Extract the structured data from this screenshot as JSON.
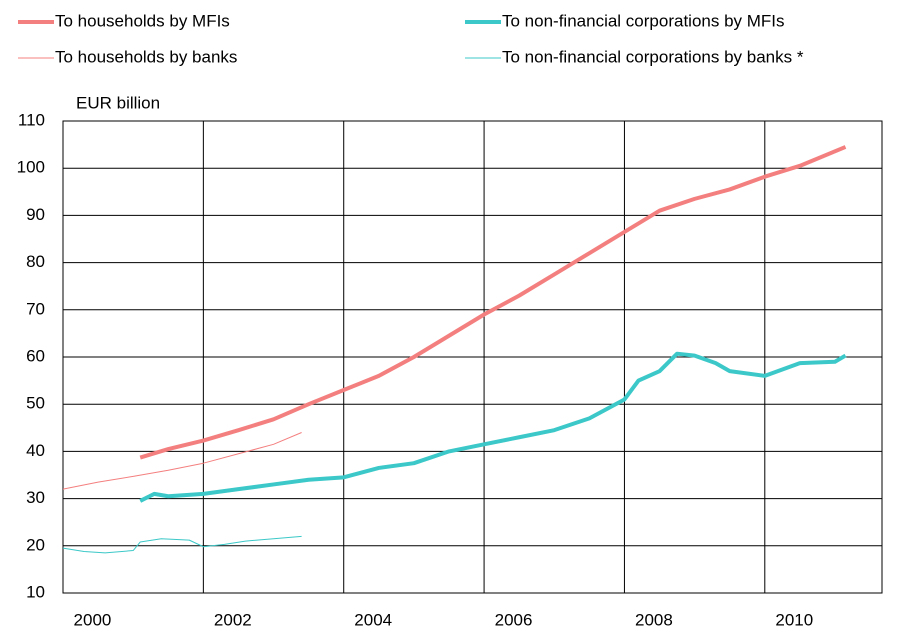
{
  "chart_data": {
    "type": "line",
    "y_label": "EUR billion",
    "xlim": [
      2000,
      2011.67
    ],
    "xticks": [
      2000,
      2002,
      2004,
      2006,
      2008,
      2010
    ],
    "ylim": [
      10,
      110
    ],
    "yticks": [
      10,
      20,
      30,
      40,
      50,
      60,
      70,
      80,
      90,
      100,
      110
    ],
    "grid": true,
    "series": [
      {
        "name": "To households by MFIs",
        "color": "#f47f7f",
        "width": 4,
        "x": [
          2001.1,
          2001.5,
          2002,
          2002.5,
          2003,
          2003.5,
          2004,
          2004.5,
          2005,
          2005.5,
          2006,
          2006.5,
          2007,
          2007.5,
          2008,
          2008.5,
          2009,
          2009.5,
          2010,
          2010.5,
          2011.15
        ],
        "values": [
          38.7,
          40.5,
          42.3,
          44.5,
          46.8,
          50,
          53,
          56,
          60,
          64.5,
          69,
          73,
          77.5,
          82,
          86.5,
          91,
          93.5,
          95.5,
          98.2,
          100.5,
          104.5
        ]
      },
      {
        "name": "To non-financial corporations by MFIs",
        "color": "#3cc8c8",
        "width": 4,
        "x": [
          2001.1,
          2001.3,
          2001.5,
          2002,
          2002.5,
          2003,
          2003.5,
          2004,
          2004.5,
          2005,
          2005.5,
          2006,
          2006.5,
          2007,
          2007.5,
          2008,
          2008.2,
          2008.5,
          2008.75,
          2009,
          2009.3,
          2009.5,
          2010,
          2010.5,
          2011,
          2011.15
        ],
        "values": [
          29.5,
          31,
          30.5,
          31,
          32,
          33,
          34,
          34.5,
          36.5,
          37.5,
          40,
          41.5,
          43,
          44.5,
          47,
          51,
          55,
          57,
          60.7,
          60.3,
          58.7,
          57,
          56,
          58.7,
          59,
          60.3
        ]
      },
      {
        "name": "To households by banks",
        "color": "#f47f7f",
        "width": 1,
        "x": [
          2000,
          2000.5,
          2001,
          2001.5,
          2002,
          2002.5,
          2003,
          2003.4
        ],
        "values": [
          32,
          33.5,
          34.7,
          36,
          37.5,
          39.5,
          41.5,
          44
        ]
      },
      {
        "name": "To non-financial corporations by banks *",
        "color": "#3cc8c8",
        "width": 1,
        "x": [
          2000,
          2000.3,
          2000.6,
          2001,
          2001.1,
          2001.4,
          2001.8,
          2002,
          2002.3,
          2002.6,
          2003,
          2003.4
        ],
        "values": [
          19.5,
          18.8,
          18.5,
          19,
          20.8,
          21.5,
          21.2,
          19.8,
          20.3,
          21,
          21.5,
          22
        ]
      }
    ]
  }
}
